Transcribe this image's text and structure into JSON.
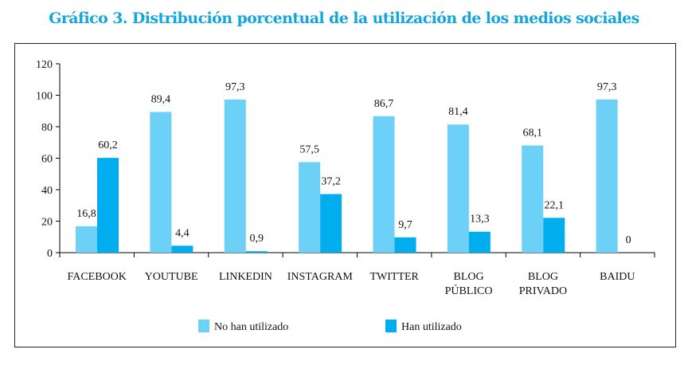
{
  "chart_data": {
    "type": "bar",
    "title": "Gráfico 3. Distribución porcentual de la utilización de los medios sociales",
    "categories": [
      [
        "FACEBOOK"
      ],
      [
        "YOUTUBE"
      ],
      [
        "LINKEDIN"
      ],
      [
        "INSTAGRAM"
      ],
      [
        "TWITTER"
      ],
      [
        "BLOG",
        "PÚBLICO"
      ],
      [
        "BLOG",
        "PRIVADO"
      ],
      [
        "BAIDU"
      ]
    ],
    "series": [
      {
        "name": "No han utilizado",
        "color": "#6dd0f7",
        "values": [
          16.8,
          89.4,
          97.3,
          57.5,
          86.7,
          81.4,
          68.1,
          97.3
        ],
        "labels": [
          "16,8",
          "89,4",
          "97,3",
          "57,5",
          "86,7",
          "81,4",
          "68,1",
          "97,3"
        ]
      },
      {
        "name": "Han utilizado",
        "color": "#00aeef",
        "values": [
          60.2,
          4.4,
          0.9,
          37.2,
          9.7,
          13.3,
          22.1,
          0
        ],
        "labels": [
          "60,2",
          "4,4",
          "0,9",
          "37,2",
          "9,7",
          "13,3",
          "22,1",
          "0"
        ]
      }
    ],
    "ylim": [
      0,
      120
    ],
    "yticks": [
      0,
      20,
      40,
      60,
      80,
      100,
      120
    ],
    "grid": false,
    "legend": "bottom"
  }
}
